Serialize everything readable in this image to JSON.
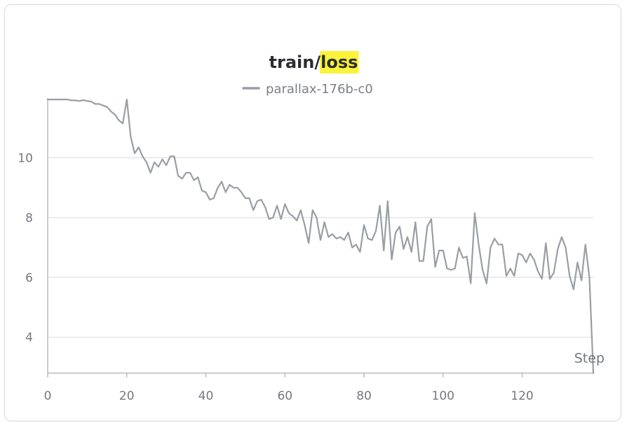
{
  "chart_data": {
    "type": "line",
    "title_prefix": "train/",
    "title_highlight": "loss",
    "highlight_color": "#fbf33a",
    "xlabel": "Step",
    "ylabel": "",
    "xlim": [
      0,
      138
    ],
    "ylim": [
      2.8,
      12
    ],
    "xticks": [
      0,
      20,
      40,
      60,
      80,
      100,
      120
    ],
    "yticks": [
      4,
      6,
      8,
      10
    ],
    "grid": true,
    "legend_position": "top-center",
    "series": [
      {
        "name": "parallax-176b-c0",
        "color": "#9a9ea3",
        "x": [
          0,
          1,
          2,
          3,
          4,
          5,
          6,
          7,
          8,
          9,
          10,
          11,
          12,
          13,
          14,
          15,
          16,
          17,
          18,
          19,
          20,
          21,
          22,
          23,
          24,
          25,
          26,
          27,
          28,
          29,
          30,
          31,
          32,
          33,
          34,
          35,
          36,
          37,
          38,
          39,
          40,
          41,
          42,
          43,
          44,
          45,
          46,
          47,
          48,
          49,
          50,
          51,
          52,
          53,
          54,
          55,
          56,
          57,
          58,
          59,
          60,
          61,
          62,
          63,
          64,
          65,
          66,
          67,
          68,
          69,
          70,
          71,
          72,
          73,
          74,
          75,
          76,
          77,
          78,
          79,
          80,
          81,
          82,
          83,
          84,
          85,
          86,
          87,
          88,
          89,
          90,
          91,
          92,
          93,
          94,
          95,
          96,
          97,
          98,
          99,
          100,
          101,
          102,
          103,
          104,
          105,
          106,
          107,
          108,
          109,
          110,
          111,
          112,
          113,
          114,
          115,
          116,
          117,
          118,
          119,
          120,
          121,
          122,
          123,
          124,
          125,
          126,
          127,
          128,
          129,
          130,
          131,
          132,
          133,
          134,
          135,
          136,
          137,
          138
        ],
        "y": [
          11.95,
          11.95,
          11.95,
          11.95,
          11.95,
          11.95,
          11.92,
          11.92,
          11.9,
          11.93,
          11.9,
          11.88,
          11.8,
          11.8,
          11.75,
          11.7,
          11.55,
          11.45,
          11.25,
          11.15,
          11.95,
          10.7,
          10.15,
          10.35,
          10.05,
          9.85,
          9.5,
          9.85,
          9.7,
          9.95,
          9.75,
          10.05,
          10.05,
          9.4,
          9.3,
          9.5,
          9.5,
          9.25,
          9.35,
          8.9,
          8.85,
          8.6,
          8.65,
          9.0,
          9.2,
          8.85,
          9.1,
          9.0,
          9.0,
          8.85,
          8.65,
          8.65,
          8.25,
          8.55,
          8.6,
          8.35,
          7.95,
          8.0,
          8.4,
          7.95,
          8.45,
          8.15,
          8.05,
          7.9,
          8.25,
          7.75,
          7.15,
          8.25,
          8.0,
          7.25,
          7.85,
          7.35,
          7.45,
          7.3,
          7.35,
          7.25,
          7.5,
          7.0,
          7.1,
          6.85,
          7.75,
          7.3,
          7.25,
          7.55,
          8.4,
          6.9,
          8.55,
          6.6,
          7.5,
          7.7,
          6.95,
          7.35,
          6.85,
          7.85,
          6.55,
          6.55,
          7.7,
          7.95,
          6.35,
          6.9,
          6.9,
          6.3,
          6.25,
          6.3,
          7.0,
          6.65,
          6.7,
          5.8,
          8.15,
          7.1,
          6.25,
          5.8,
          7.0,
          7.3,
          7.1,
          7.1,
          6.05,
          6.3,
          6.05,
          6.8,
          6.75,
          6.5,
          6.8,
          6.6,
          6.2,
          5.95,
          7.15,
          5.95,
          6.15,
          6.95,
          7.35,
          7.0,
          6.05,
          5.6,
          6.5,
          5.9,
          7.1,
          6.0,
          2.8
        ]
      }
    ]
  }
}
